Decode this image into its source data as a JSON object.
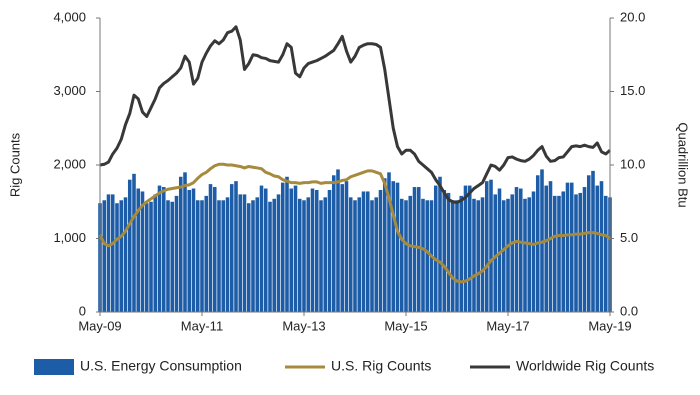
{
  "chart_data": {
    "type": "combo",
    "y_label": "Rig Counts",
    "y2_label": "Quadrillion Btu",
    "categories": [
      "May-09",
      null,
      null,
      null,
      null,
      null,
      null,
      null,
      null,
      null,
      null,
      null,
      null,
      null,
      null,
      null,
      null,
      null,
      null,
      null,
      null,
      null,
      null,
      null,
      "May-11",
      null,
      null,
      null,
      null,
      null,
      null,
      null,
      null,
      null,
      null,
      null,
      null,
      null,
      null,
      null,
      null,
      null,
      null,
      null,
      null,
      null,
      null,
      null,
      "May-13",
      null,
      null,
      null,
      null,
      null,
      null,
      null,
      null,
      null,
      null,
      null,
      null,
      null,
      null,
      null,
      null,
      null,
      null,
      null,
      null,
      null,
      null,
      null,
      "May-15",
      null,
      null,
      null,
      null,
      null,
      null,
      null,
      null,
      null,
      null,
      null,
      null,
      null,
      null,
      null,
      null,
      null,
      null,
      null,
      null,
      null,
      null,
      null,
      "May-17",
      null,
      null,
      null,
      null,
      null,
      null,
      null,
      null,
      null,
      null,
      null,
      null,
      null,
      null,
      null,
      null,
      null,
      null,
      null,
      null,
      null,
      null,
      null,
      "May-19"
    ],
    "ylim": [
      0,
      4000
    ],
    "yticks": [
      0,
      {
        "value": 1000,
        "label": "1,000"
      },
      {
        "value": 2000,
        "label": "2,000"
      },
      {
        "value": 3000,
        "label": "3,000"
      },
      {
        "value": 4000,
        "label": "4,000"
      }
    ],
    "y2lim": [
      0,
      20
    ],
    "y2ticks": [
      {
        "value": 0,
        "label": "0.0"
      },
      {
        "value": 5,
        "label": "5.0"
      },
      {
        "value": 10,
        "label": "10.0"
      },
      {
        "value": 15,
        "label": "15.0"
      },
      {
        "value": 20,
        "label": "20.0"
      }
    ],
    "legend": "bottom",
    "series": [
      {
        "name": "U.S. Energy Consumption",
        "type": "bar",
        "axis": "y2",
        "color": "#1d5ca6",
        "values": [
          7.4,
          7.6,
          8.0,
          8.0,
          7.4,
          7.6,
          7.8,
          9.0,
          9.4,
          8.4,
          8.2,
          7.4,
          7.5,
          8.0,
          8.6,
          8.5,
          7.6,
          7.5,
          7.9,
          9.2,
          9.5,
          8.3,
          8.4,
          7.6,
          7.6,
          7.9,
          8.7,
          8.5,
          7.6,
          7.6,
          7.8,
          8.7,
          8.9,
          8.0,
          8.0,
          7.4,
          7.6,
          7.8,
          8.6,
          8.4,
          7.5,
          7.7,
          8.0,
          8.8,
          9.2,
          8.4,
          8.6,
          7.7,
          7.6,
          7.8,
          8.4,
          8.3,
          7.6,
          7.8,
          8.3,
          9.3,
          9.7,
          8.7,
          8.9,
          7.8,
          7.6,
          7.8,
          8.2,
          8.2,
          7.6,
          7.8,
          8.3,
          9.1,
          9.5,
          8.9,
          8.8,
          7.7,
          7.6,
          7.9,
          8.5,
          8.5,
          7.7,
          7.6,
          7.6,
          8.6,
          9.2,
          8.3,
          8.1,
          7.6,
          7.6,
          7.9,
          8.6,
          8.6,
          7.7,
          7.6,
          7.8,
          8.9,
          9.0,
          8.0,
          8.4,
          7.6,
          7.7,
          8.0,
          8.5,
          8.4,
          7.7,
          7.8,
          8.2,
          9.3,
          9.7,
          8.6,
          8.9,
          7.9,
          7.9,
          8.2,
          8.8,
          8.8,
          8.0,
          8.1,
          8.5,
          9.3,
          9.6,
          8.6,
          8.9,
          7.9,
          7.8
        ]
      },
      {
        "name": "U.S. Rig Counts",
        "type": "line",
        "color": "#a68b3e",
        "values": [
          1050,
          930,
          900,
          930,
          990,
          1030,
          1100,
          1200,
          1300,
          1380,
          1450,
          1500,
          1540,
          1580,
          1620,
          1650,
          1670,
          1680,
          1690,
          1700,
          1720,
          1730,
          1760,
          1820,
          1870,
          1900,
          1950,
          1990,
          2010,
          2010,
          2000,
          2000,
          1990,
          1980,
          1960,
          1980,
          1970,
          1960,
          1950,
          1900,
          1880,
          1850,
          1840,
          1800,
          1780,
          1760,
          1760,
          1750,
          1760,
          1760,
          1770,
          1770,
          1750,
          1760,
          1760,
          1760,
          1770,
          1790,
          1800,
          1840,
          1860,
          1880,
          1900,
          1920,
          1920,
          1900,
          1880,
          1750,
          1550,
          1320,
          1100,
          990,
          930,
          900,
          890,
          880,
          860,
          820,
          760,
          710,
          680,
          620,
          540,
          460,
          420,
          410,
          420,
          450,
          490,
          520,
          560,
          620,
          700,
          750,
          800,
          850,
          900,
          940,
          960,
          950,
          940,
          930,
          920,
          940,
          950,
          970,
          1000,
          1030,
          1040,
          1040,
          1050,
          1050,
          1060,
          1060,
          1070,
          1080,
          1080,
          1070,
          1050,
          1040,
          1000
        ]
      },
      {
        "name": "Worldwide Rig Counts",
        "type": "line",
        "color": "#383838",
        "values": [
          2000,
          2010,
          2040,
          2150,
          2230,
          2350,
          2550,
          2700,
          2950,
          2900,
          2720,
          2660,
          2780,
          2900,
          3050,
          3110,
          3150,
          3200,
          3250,
          3320,
          3480,
          3400,
          3100,
          3180,
          3400,
          3520,
          3620,
          3690,
          3650,
          3700,
          3800,
          3820,
          3880,
          3700,
          3300,
          3380,
          3500,
          3490,
          3460,
          3450,
          3420,
          3410,
          3400,
          3500,
          3650,
          3600,
          3250,
          3200,
          3320,
          3380,
          3400,
          3420,
          3450,
          3480,
          3520,
          3560,
          3650,
          3750,
          3550,
          3400,
          3480,
          3600,
          3630,
          3650,
          3650,
          3640,
          3600,
          3300,
          2900,
          2500,
          2250,
          2150,
          2200,
          2200,
          2150,
          2050,
          2000,
          1950,
          1900,
          1800,
          1720,
          1620,
          1530,
          1500,
          1490,
          1520,
          1560,
          1620,
          1680,
          1720,
          1760,
          1880,
          2000,
          1980,
          1930,
          2000,
          2100,
          2110,
          2080,
          2060,
          2050,
          2080,
          2130,
          2200,
          2250,
          2120,
          2050,
          2060,
          2100,
          2110,
          2180,
          2250,
          2260,
          2250,
          2270,
          2250,
          2240,
          2300,
          2180,
          2150,
          2200
        ]
      }
    ]
  }
}
